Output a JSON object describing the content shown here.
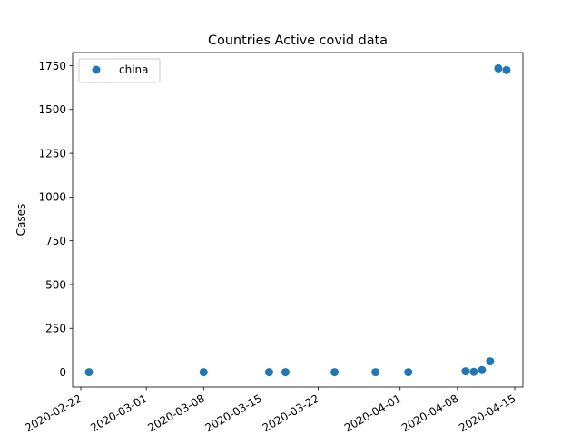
{
  "chart_data": {
    "type": "scatter",
    "title": "Countries Active covid data",
    "xlabel": "",
    "ylabel": "Cases",
    "xlim": [
      "2020-02-21",
      "2020-04-16"
    ],
    "ylim": [
      -85,
      1825
    ],
    "x_ticks": [
      "2020-02-22",
      "2020-03-01",
      "2020-03-08",
      "2020-03-15",
      "2020-03-22",
      "2020-04-01",
      "2020-04-08",
      "2020-04-15"
    ],
    "y_ticks": [
      0,
      250,
      500,
      750,
      1000,
      1250,
      1500,
      1750
    ],
    "grid": false,
    "legend_position": "upper-left",
    "marker_color": "#1f77b4",
    "series": [
      {
        "name": "china",
        "x": [
          "2020-02-23",
          "2020-03-08",
          "2020-03-16",
          "2020-03-18",
          "2020-03-24",
          "2020-03-29",
          "2020-04-02",
          "2020-04-09",
          "2020-04-10",
          "2020-04-11",
          "2020-04-12",
          "2020-04-13",
          "2020-04-14"
        ],
        "y": [
          0,
          0,
          0,
          0,
          0,
          0,
          0,
          5,
          2,
          12,
          62,
          1735,
          1725
        ]
      }
    ]
  }
}
